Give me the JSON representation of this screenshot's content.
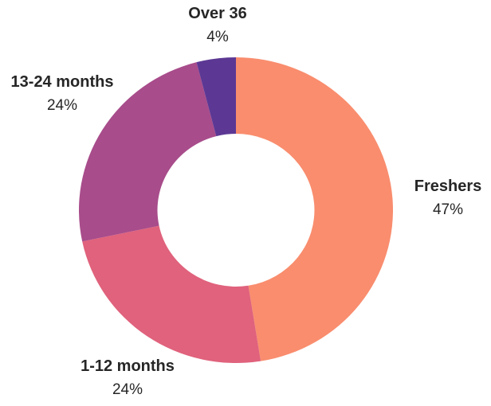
{
  "chart_data": {
    "type": "pie",
    "subtype": "donut",
    "title": "",
    "background": "#FFFFFF",
    "label_color": "#262626",
    "start_angle_deg": 0,
    "direction": "clockwise",
    "inner_radius_ratio": 0.5,
    "legend_position": "labels-outside",
    "slices": [
      {
        "label": "Freshers",
        "value": 47,
        "pct_label": "47%",
        "color": "#F98D6E"
      },
      {
        "label": "1-12 months",
        "value": 24,
        "pct_label": "24%",
        "color": "#E0627C"
      },
      {
        "label": "13-24 months",
        "value": 24,
        "pct_label": "24%",
        "color": "#A84C8B"
      },
      {
        "label": "Over 36",
        "value": 4,
        "pct_label": "4%",
        "color": "#5C3894"
      }
    ]
  }
}
